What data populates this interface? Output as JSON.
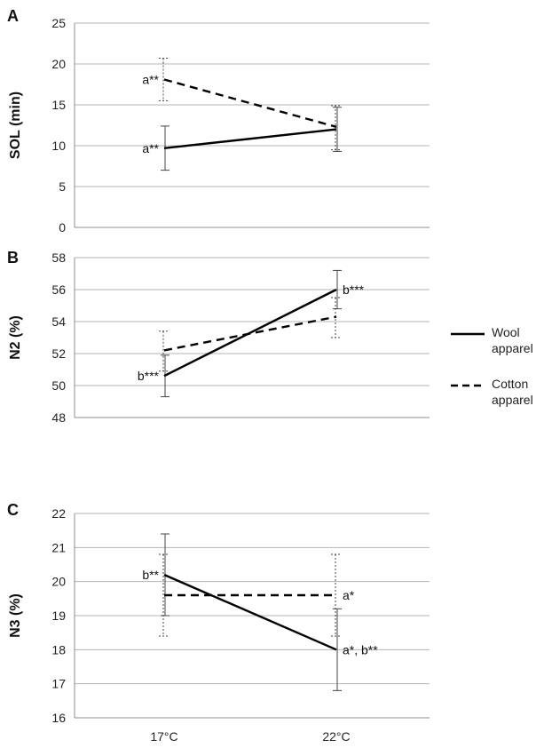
{
  "chart_data": [
    {
      "type": "line",
      "panel_letter": "A",
      "ylabel": "SOL (min)",
      "xlabel": "",
      "categories": [
        "17°C",
        "22°C"
      ],
      "ylim": [
        0,
        25
      ],
      "yticks": [
        0,
        5,
        10,
        15,
        20,
        25
      ],
      "grid": true,
      "series": [
        {
          "name": "Wool apparel",
          "values": [
            9.7,
            12.0
          ],
          "err_low": [
            7.0,
            9.3
          ],
          "err_high": [
            12.4,
            14.7
          ]
        },
        {
          "name": "Cotton apparel",
          "values": [
            18.1,
            12.3
          ],
          "err_low": [
            15.5,
            9.5
          ],
          "err_high": [
            20.7,
            14.9
          ]
        }
      ],
      "annotations": [
        {
          "text": "a**",
          "category": 0,
          "y": 18.1,
          "series": "Cotton apparel"
        },
        {
          "text": "a**",
          "category": 0,
          "y": 9.7,
          "series": "Wool apparel"
        }
      ]
    },
    {
      "type": "line",
      "panel_letter": "B",
      "ylabel": "N2 (%)",
      "xlabel": "",
      "categories": [
        "17°C",
        "22°C"
      ],
      "ylim": [
        48,
        58
      ],
      "yticks": [
        48,
        50,
        52,
        54,
        56,
        58
      ],
      "grid": true,
      "series": [
        {
          "name": "Wool apparel",
          "values": [
            50.6,
            56.0
          ],
          "err_low": [
            49.3,
            54.8
          ],
          "err_high": [
            51.9,
            57.2
          ]
        },
        {
          "name": "Cotton apparel",
          "values": [
            52.2,
            54.3
          ],
          "err_low": [
            50.9,
            53.0
          ],
          "err_high": [
            53.4,
            55.5
          ]
        }
      ],
      "annotations": [
        {
          "text": "b***",
          "category": 0,
          "y": 50.6,
          "series": "Wool apparel"
        },
        {
          "text": "b***",
          "category": 1,
          "y": 56.0,
          "series": "Wool apparel"
        }
      ]
    },
    {
      "type": "line",
      "panel_letter": "C",
      "ylabel": "N3 (%)",
      "xlabel": "",
      "categories": [
        "17°C",
        "22°C"
      ],
      "ylim": [
        16,
        22
      ],
      "yticks": [
        16,
        17,
        18,
        19,
        20,
        21,
        22
      ],
      "grid": true,
      "series": [
        {
          "name": "Wool apparel",
          "values": [
            20.2,
            18.0
          ],
          "err_low": [
            19.0,
            16.8
          ],
          "err_high": [
            21.4,
            19.2
          ]
        },
        {
          "name": "Cotton apparel",
          "values": [
            19.6,
            19.6
          ],
          "err_low": [
            18.4,
            18.4
          ],
          "err_high": [
            20.8,
            20.8
          ]
        }
      ],
      "annotations": [
        {
          "text": "b**",
          "category": 0,
          "y": 20.2,
          "series": "Wool apparel"
        },
        {
          "text": "a*",
          "category": 1,
          "y": 19.6,
          "series": "Cotton apparel"
        },
        {
          "text": "a*, b**",
          "category": 1,
          "y": 18.0,
          "series": "Wool apparel"
        }
      ]
    }
  ],
  "legend": {
    "position": "right",
    "items": [
      {
        "line1": "Wool",
        "line2": "apparel",
        "style": "solid",
        "color": "#000000"
      },
      {
        "line1": "Cotton",
        "line2": "apparel",
        "style": "dashed",
        "color": "#000000"
      }
    ]
  },
  "colors": {
    "line": "#000000",
    "grid": "#b5b5b5",
    "axis": "#8c8c8c",
    "errorbar": "#444444"
  }
}
